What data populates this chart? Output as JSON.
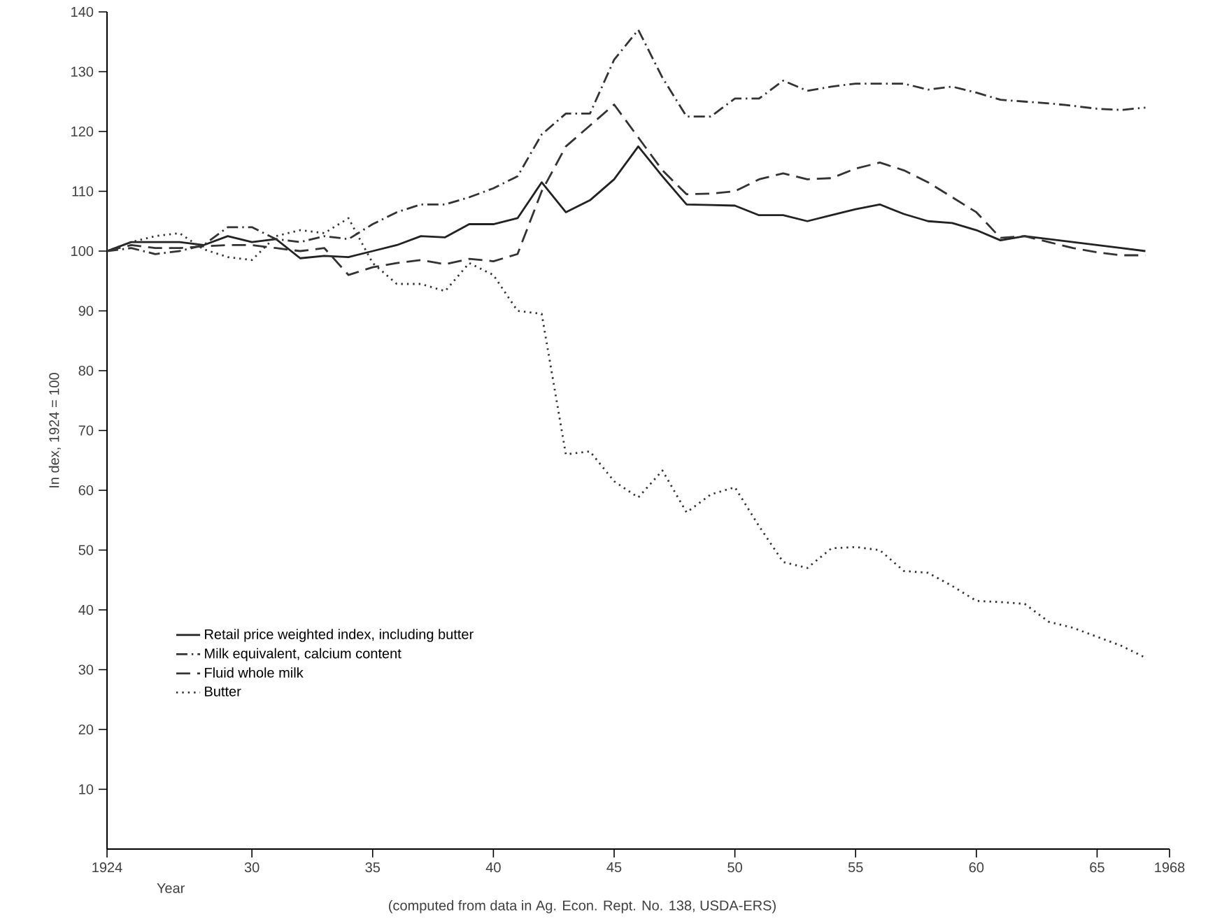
{
  "chart_data": {
    "type": "line",
    "xlabel": "Year",
    "ylabel": "In dex, 1924 = 100",
    "annotations": [
      "(computed from data in Ag. Econ. Rept. No. 138, USDA-ERS)"
    ],
    "x": [
      1924,
      1925,
      1926,
      1927,
      1928,
      1929,
      1930,
      1931,
      1932,
      1933,
      1934,
      1935,
      1936,
      1937,
      1938,
      1939,
      1940,
      1941,
      1942,
      1943,
      1944,
      1945,
      1946,
      1947,
      1948,
      1949,
      1950,
      1951,
      1952,
      1953,
      1954,
      1955,
      1956,
      1957,
      1958,
      1959,
      1960,
      1961,
      1962,
      1963,
      1964,
      1965,
      1966,
      1967
    ],
    "xlim": [
      1924,
      1968
    ],
    "xticks": [
      {
        "value": 1924,
        "label": "1924"
      },
      {
        "value": 1930,
        "label": "30"
      },
      {
        "value": 1935,
        "label": "35"
      },
      {
        "value": 1940,
        "label": "40"
      },
      {
        "value": 1945,
        "label": "45"
      },
      {
        "value": 1950,
        "label": "50"
      },
      {
        "value": 1955,
        "label": "55"
      },
      {
        "value": 1960,
        "label": "60"
      },
      {
        "value": 1965,
        "label": "65"
      },
      {
        "value": 1968,
        "label": "1968"
      }
    ],
    "ylim": [
      0,
      140
    ],
    "yticks": [
      10,
      20,
      30,
      40,
      50,
      60,
      70,
      80,
      90,
      100,
      110,
      120,
      130,
      140
    ],
    "grid": false,
    "legend": "bottom left",
    "marker": "none",
    "series": [
      {
        "name": "Retail price weighted index, including butter",
        "color": "#222222",
        "line_style": "solid",
        "values": [
          100,
          101.5,
          101.5,
          101.5,
          101,
          102.5,
          101.5,
          102,
          98.8,
          99.2,
          99,
          100,
          101,
          102.5,
          102.3,
          104.5,
          104.5,
          105.5,
          111.5,
          106.5,
          108.5,
          112,
          117.5,
          112.5,
          107.8,
          107.7,
          107.6,
          106,
          106,
          105,
          106,
          107,
          107.8,
          106.2,
          105,
          104.7,
          103.5,
          101.8,
          102.5,
          102,
          101.5,
          101,
          100.5,
          100
        ]
      },
      {
        "name": "Milk equivalent, calcium content",
        "color": "#333333",
        "line_style": "dashdot",
        "values": [
          100,
          100.5,
          99.5,
          100,
          101,
          104,
          104,
          102,
          101.5,
          102.5,
          102,
          104.5,
          106.5,
          107.8,
          107.8,
          109,
          110.5,
          112.5,
          119.5,
          123,
          123,
          132,
          137,
          129,
          122.5,
          122.5,
          125.5,
          125.5,
          128.5,
          126.8,
          127.5,
          128,
          128,
          128,
          127,
          127.5,
          126.5,
          125.3,
          125,
          124.7,
          124.3,
          123.8,
          123.6,
          124
        ]
      },
      {
        "name": "Fluid whole milk",
        "color": "#333333",
        "line_style": "dashed",
        "values": [
          100,
          101,
          100.5,
          100.5,
          100.8,
          101,
          101,
          100.5,
          100,
          100.5,
          96,
          97.3,
          98,
          98.5,
          97.8,
          98.7,
          98.3,
          99.5,
          110,
          117.5,
          121,
          124.5,
          119,
          113.5,
          109.5,
          109.6,
          110,
          112,
          113,
          112,
          112.2,
          113.8,
          114.8,
          113.5,
          111.5,
          109,
          106.5,
          102.2,
          102.5,
          101.5,
          100.5,
          99.8,
          99.3,
          99.3
        ]
      },
      {
        "name": "Butter",
        "color": "#333333",
        "line_style": "dotted",
        "values": [
          100,
          101.5,
          102.5,
          103,
          100.3,
          99,
          98.5,
          102.5,
          103.5,
          103,
          105.5,
          98,
          94.5,
          94.5,
          93.3,
          98,
          96,
          90,
          89.5,
          66,
          66.5,
          61.5,
          58.8,
          63.3,
          56.3,
          59.3,
          60.5,
          54,
          48,
          47,
          50.3,
          50.5,
          50,
          46.5,
          46.2,
          44,
          41.5,
          41.3,
          41,
          38,
          37,
          35.5,
          34,
          32
        ]
      }
    ]
  }
}
